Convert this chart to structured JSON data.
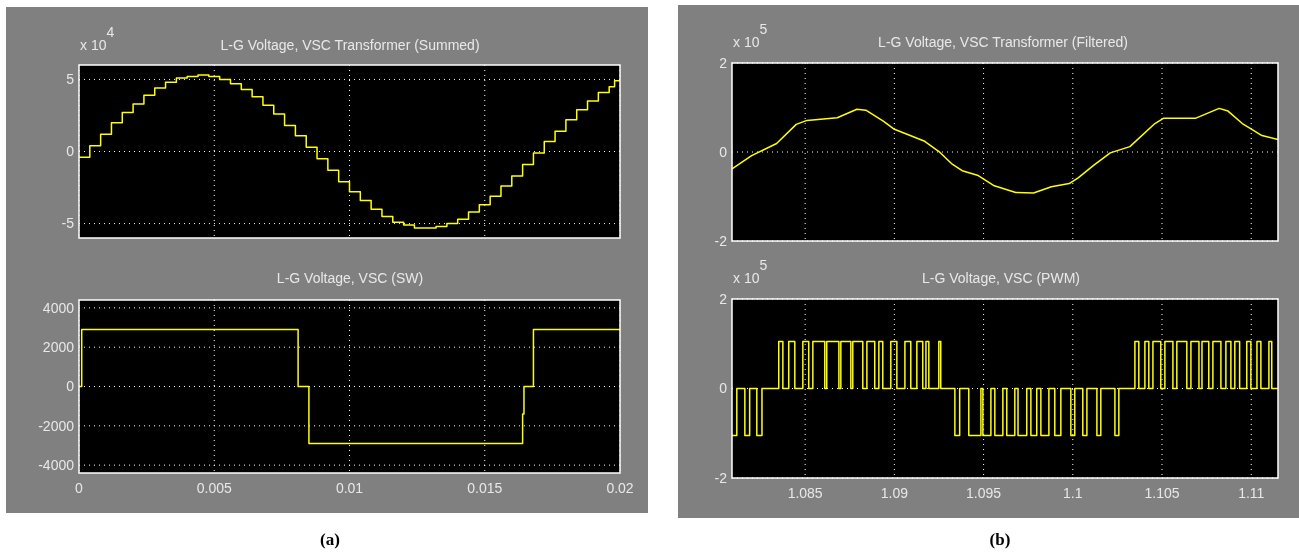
{
  "chart_data": [
    {
      "type": "step",
      "title": "L-G Voltage, VSC Transformer (Summed)",
      "annotations": [
        "x 10$^{4}$"
      ],
      "color": "#ffff00",
      "grid": true,
      "tick_labels": "y",
      "xlim": [
        0,
        0.02
      ],
      "xticks": [
        0,
        0.005,
        0.01,
        0.015,
        0.02
      ],
      "ylim": [
        -6,
        6
      ],
      "yticks": [
        -5,
        0,
        5
      ],
      "x": [
        0,
        0.0004,
        0.0008,
        0.0012,
        0.0016,
        0.002,
        0.0024,
        0.0028,
        0.0032,
        0.0036,
        0.004,
        0.0044,
        0.0048,
        0.0052,
        0.0056,
        0.006,
        0.0064,
        0.0068,
        0.0072,
        0.0076,
        0.008,
        0.0084,
        0.0088,
        0.0092,
        0.0096,
        0.01,
        0.0104,
        0.0108,
        0.0112,
        0.0116,
        0.012,
        0.0124,
        0.0128,
        0.0132,
        0.0136,
        0.014,
        0.0144,
        0.0148,
        0.0152,
        0.0156,
        0.016,
        0.0164,
        0.0168,
        0.0172,
        0.0176,
        0.018,
        0.0184,
        0.0188,
        0.0192,
        0.0196,
        0.0198,
        0.02
      ],
      "values": [
        -0.4,
        0.4,
        1.2,
        2.0,
        2.7,
        3.3,
        3.9,
        4.4,
        4.8,
        5.1,
        5.2,
        5.3,
        5.2,
        5.0,
        4.7,
        4.3,
        3.8,
        3.2,
        2.6,
        1.8,
        1.1,
        0.3,
        -0.5,
        -1.3,
        -2.1,
        -2.8,
        -3.4,
        -4.0,
        -4.5,
        -4.9,
        -5.1,
        -5.3,
        -5.3,
        -5.2,
        -5.0,
        -4.7,
        -4.2,
        -3.7,
        -3.1,
        -2.4,
        -1.7,
        -0.9,
        -0.1,
        0.7,
        1.4,
        2.2,
        2.9,
        3.5,
        4.1,
        4.5,
        4.9,
        4.9
      ]
    },
    {
      "type": "step",
      "title": "L-G Voltage, VSC (SW)",
      "annotations": [
        "(a)"
      ],
      "color": "#ffff00",
      "grid": true,
      "xlim": [
        0,
        0.02
      ],
      "xticks": [
        0,
        0.005,
        0.01,
        0.015,
        0.02
      ],
      "ylim": [
        -4400,
        4400
      ],
      "yticks": [
        -4000,
        -2000,
        0,
        2000,
        4000
      ],
      "x": [
        0,
        0.0001,
        0.0081,
        0.0085,
        0.0164,
        0.01645,
        0.0168,
        0.02
      ],
      "values": [
        0,
        2900,
        0,
        -2900,
        -1400,
        0,
        2900,
        2900
      ]
    },
    {
      "type": "line",
      "title": "L-G Voltage, VSC Transformer (Filtered)",
      "annotations": [
        "x 10$^{5}$"
      ],
      "color": "#ffff00",
      "grid": true,
      "tick_labels": "y",
      "xlim": [
        1.0809,
        1.1115
      ],
      "xticks": [
        1.085,
        1.09,
        1.095,
        1.1,
        1.105,
        1.11
      ],
      "ylim": [
        -2,
        2
      ],
      "yticks": [
        -2,
        0,
        2
      ],
      "x": [
        1.0809,
        1.082,
        1.0834,
        1.0845,
        1.0851,
        1.0868,
        1.0879,
        1.0884,
        1.0894,
        1.09,
        1.0917,
        1.0925,
        1.0932,
        1.0938,
        1.0947,
        1.0956,
        1.0968,
        1.0978,
        1.0988,
        1.0998,
        1.1003,
        1.1012,
        1.1021,
        1.1032,
        1.1046,
        1.1051,
        1.1069,
        1.1082,
        1.1087,
        1.1095,
        1.1101,
        1.1106,
        1.1115
      ],
      "values": [
        -0.38,
        -0.08,
        0.19,
        0.62,
        0.71,
        0.77,
        0.96,
        0.94,
        0.69,
        0.51,
        0.24,
        0.01,
        -0.26,
        -0.42,
        -0.53,
        -0.76,
        -0.91,
        -0.92,
        -0.78,
        -0.71,
        -0.58,
        -0.29,
        -0.02,
        0.12,
        0.64,
        0.76,
        0.76,
        0.98,
        0.92,
        0.64,
        0.49,
        0.37,
        0.28
      ]
    },
    {
      "type": "step",
      "title": "L-G Voltage, VSC (PWM)",
      "annotations": [
        "x 10$^{5}$",
        "(b)"
      ],
      "color": "#ffff00",
      "grid": true,
      "xlim": [
        1.0809,
        1.1115
      ],
      "xticks": [
        1.085,
        1.09,
        1.095,
        1.1,
        1.105,
        1.11
      ],
      "ylim": [
        -2,
        2
      ],
      "yticks": [
        -2,
        0,
        2
      ],
      "x": [
        1.0809,
        1.08117,
        1.08162,
        1.08189,
        1.08229,
        1.08258,
        1.08352,
        1.08375,
        1.08408,
        1.08442,
        1.08487,
        1.0852,
        1.08543,
        1.0861,
        1.08621,
        1.08689,
        1.087,
        1.08756,
        1.08767,
        1.08823,
        1.08846,
        1.0889,
        1.08913,
        1.08935,
        1.0898,
        1.09014,
        1.09059,
        1.09092,
        1.09126,
        1.09159,
        1.09177,
        1.09193,
        1.09249,
        1.0926,
        1.09339,
        1.09366,
        1.09417,
        1.09485,
        1.09496,
        1.09541,
        1.09563,
        1.09608,
        1.0963,
        1.09675,
        1.09693,
        1.09742,
        1.09765,
        1.09798,
        1.09821,
        1.09866,
        1.09899,
        1.09933,
        1.09989,
        1.10011,
        1.10056,
        1.10079,
        1.10135,
        1.10157,
        1.10236,
        1.10258,
        1.10348,
        1.1037,
        1.10404,
        1.10426,
        1.10449,
        1.10493,
        1.10516,
        1.10561,
        1.10583,
        1.10639,
        1.10662,
        1.10707,
        1.10724,
        1.10762,
        1.10785,
        1.1083,
        1.10858,
        1.10886,
        1.10908,
        1.10935,
        1.10975,
        1.10998,
        1.11032,
        1.11054,
        1.11099,
        1.11115,
        1.1115
      ],
      "values": [
        -1.05,
        0,
        -1.05,
        0,
        -1.05,
        0,
        1.05,
        0,
        1.05,
        0,
        1.05,
        0,
        1.05,
        0,
        1.05,
        0,
        1.05,
        0,
        1.05,
        0,
        1.05,
        0,
        1.05,
        0,
        1.05,
        0,
        1.05,
        0,
        1.05,
        0,
        1.05,
        0,
        1.05,
        0,
        -1.05,
        0,
        -1.05,
        0,
        -1.05,
        0,
        -1.05,
        0,
        -1.05,
        0,
        -1.05,
        0,
        -1.05,
        0,
        -1.05,
        0,
        -1.05,
        0,
        -1.05,
        0,
        -1.05,
        0,
        -1.05,
        0,
        -1.05,
        0,
        1.05,
        0,
        1.05,
        0,
        1.05,
        0,
        1.05,
        0,
        1.05,
        0,
        1.05,
        0,
        1.05,
        0,
        1.05,
        0,
        1.05,
        0,
        1.05,
        0,
        1.05,
        0,
        1.05,
        0,
        1.05,
        0,
        0
      ]
    }
  ]
}
